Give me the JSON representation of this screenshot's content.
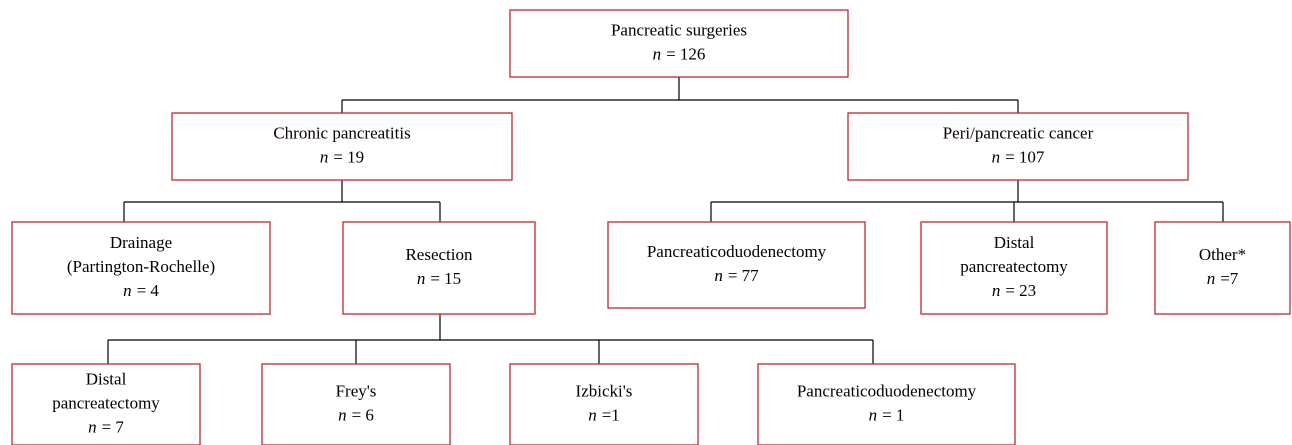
{
  "nodes": [
    {
      "label": [
        "Pancreatic surgeries"
      ],
      "count_var": "n",
      "count": "= 126"
    },
    {
      "label": [
        "Chronic pancreatitis"
      ],
      "count_var": "n",
      "count": "= 19"
    },
    {
      "label": [
        "Peri/pancreatic cancer"
      ],
      "count_var": "n",
      "count": "= 107"
    },
    {
      "label": [
        "Drainage",
        "(Partington-Rochelle)"
      ],
      "count_var": "n",
      "count": "= 4"
    },
    {
      "label": [
        "Resection"
      ],
      "count_var": "n",
      "count": "= 15"
    },
    {
      "label": [
        "Pancreaticoduodenectomy"
      ],
      "count_var": "n",
      "count": "= 77"
    },
    {
      "label": [
        "Distal",
        "pancreatectomy"
      ],
      "count_var": "n",
      "count": "= 23"
    },
    {
      "label": [
        "Other*"
      ],
      "count_var": "n",
      "count": "=7"
    },
    {
      "label": [
        "Distal",
        "pancreatectomy"
      ],
      "count_var": "n",
      "count": "= 7"
    },
    {
      "label": [
        "Frey's"
      ],
      "count_var": "n",
      "count": "= 6"
    },
    {
      "label": [
        "Izbicki's"
      ],
      "count_var": "n",
      "count": "=1"
    },
    {
      "label": [
        "Pancreaticoduodenectomy"
      ],
      "count_var": "n",
      "count": "= 1"
    }
  ]
}
